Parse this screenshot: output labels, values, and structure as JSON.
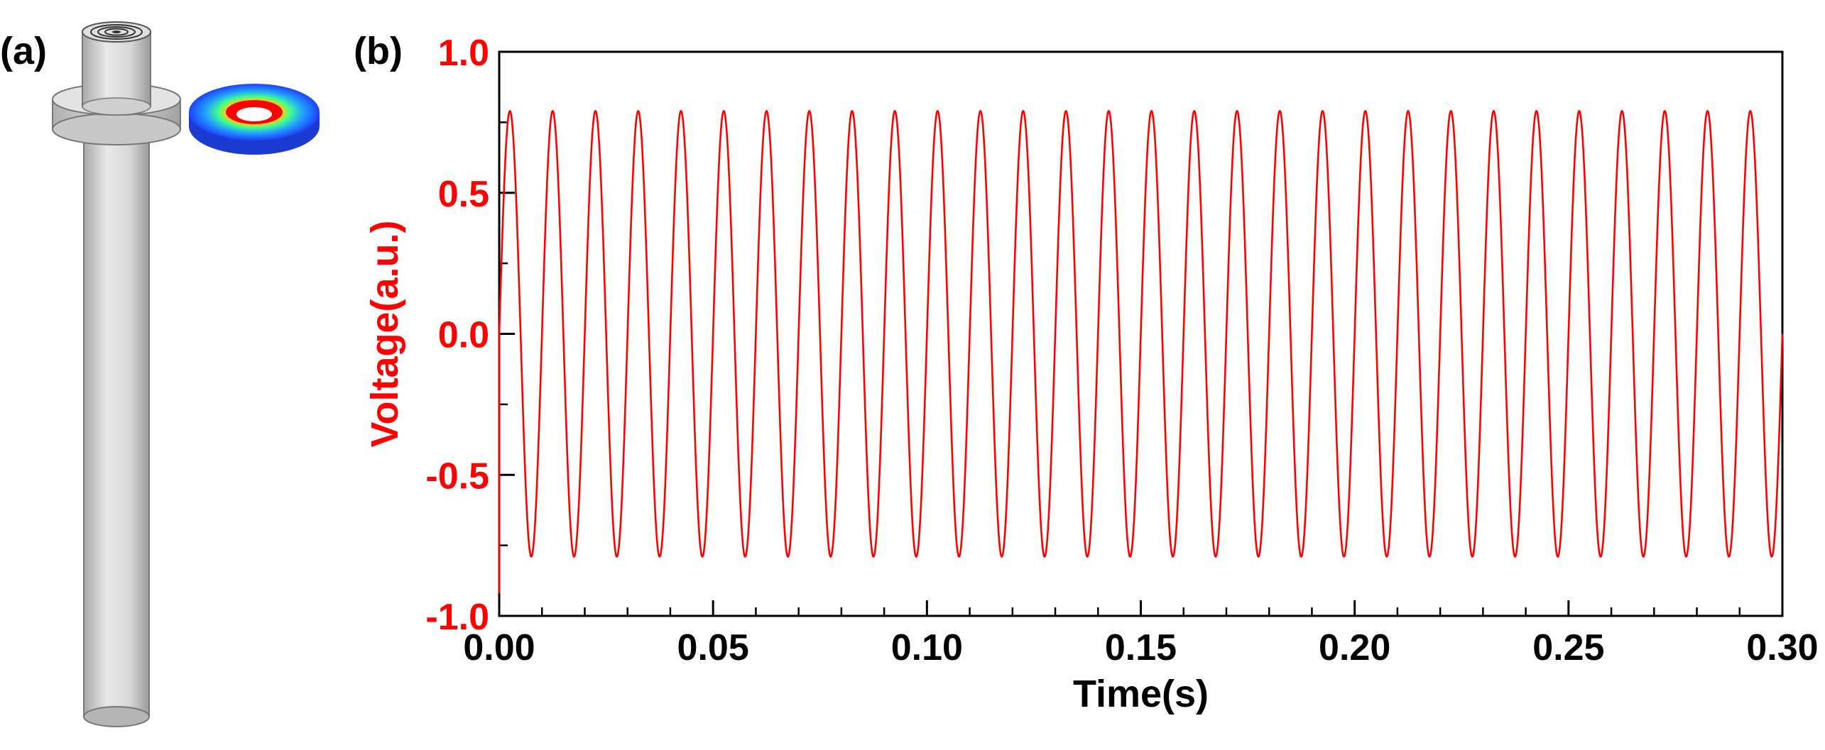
{
  "panel_labels": {
    "a": "(a)",
    "b": "(b)"
  },
  "colors": {
    "signal": "#ff0000",
    "y_axis_text": "#ff0000",
    "x_axis_text": "#000000",
    "rod": "#d0d0d0",
    "disk_inner": "#ff0000",
    "disk_outer": "#1e5aff"
  },
  "chart_data": {
    "type": "line",
    "title": "",
    "xlabel": "Time(s)",
    "ylabel": "Voltage(a.u.)",
    "xlim": [
      0.0,
      0.3
    ],
    "ylim": [
      -1.0,
      1.0
    ],
    "x_ticks": [
      0.0,
      0.05,
      0.1,
      0.15,
      0.2,
      0.25,
      0.3
    ],
    "x_tick_labels": [
      "0.00",
      "0.05",
      "0.10",
      "0.15",
      "0.20",
      "0.25",
      "0.30"
    ],
    "y_ticks": [
      -1.0,
      -0.5,
      0.0,
      0.5,
      1.0
    ],
    "y_tick_labels": [
      "-1.0",
      "-0.5",
      "0.0",
      "0.5",
      "1.0"
    ],
    "grid": false,
    "legend": "none",
    "series": [
      {
        "color": "#ff0000",
        "waveform": "sine",
        "amplitude": 0.79,
        "frequency_hz": 100,
        "phase_rad": 0,
        "offset": 0,
        "start_transient_value": -0.92,
        "t_start": 0.0,
        "t_end": 0.3
      }
    ]
  }
}
